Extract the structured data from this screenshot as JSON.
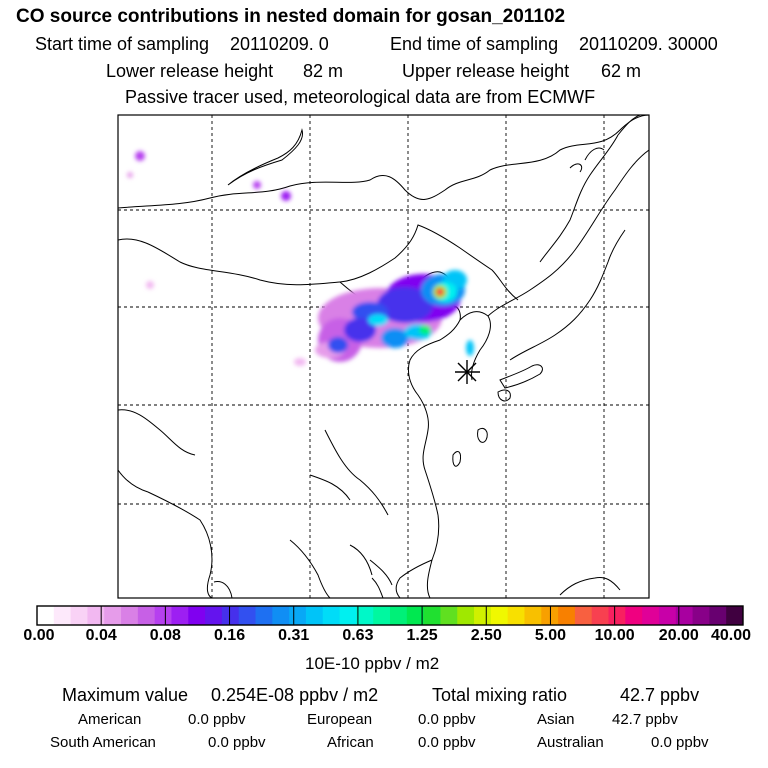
{
  "header": {
    "title": "CO  source contributions in nested domain for gosan_201102",
    "start_label": "Start time of sampling",
    "start_value": "20110209.     0",
    "end_label": "End time of sampling",
    "end_value": "20110209. 30000",
    "lower_label": "Lower release height",
    "lower_value": "82 m",
    "upper_label": "Upper release height",
    "upper_value": "62 m",
    "subtitle": "Passive tracer used, meteorological data are from ECMWF"
  },
  "map": {
    "receptor_icon": "asterisk-icon",
    "grid": true
  },
  "colorbar": {
    "tick_labels": [
      "0.00",
      "0.04",
      "0.08",
      "0.16",
      "0.31",
      "0.63",
      "1.25",
      "2.50",
      "5.00",
      "10.00",
      "20.00",
      "40.00"
    ],
    "unit": "10E-10 ppbv / m2",
    "colors": [
      "#ffffff",
      "#fde9fb",
      "#f9d2f6",
      "#f2b8f1",
      "#e69cea",
      "#d980e6",
      "#c760e6",
      "#b640ef",
      "#9d1ff2",
      "#8000f0",
      "#6414ee",
      "#4630ec",
      "#3250f0",
      "#1e70f2",
      "#108ef4",
      "#08a8f6",
      "#00c4f8",
      "#00dcf8",
      "#00f0f0",
      "#00f8c8",
      "#00f8a0",
      "#00f078",
      "#00e850",
      "#20e030",
      "#60e020",
      "#a0e800",
      "#d0f000",
      "#f0f800",
      "#f8e000",
      "#f8c000",
      "#f8a000",
      "#f88000",
      "#f86040",
      "#f84050",
      "#f82060",
      "#f00080",
      "#e00098",
      "#c800a8",
      "#a800a0",
      "#880088",
      "#680070",
      "#400040"
    ]
  },
  "stats": {
    "max_label": "Maximum value",
    "max_value": "0.254E-08 ppbv / m2",
    "total_label": "Total mixing ratio",
    "total_value": "42.7 ppbv",
    "regions": [
      {
        "name": "American",
        "value": "0.0 ppbv"
      },
      {
        "name": "European",
        "value": "0.0 ppbv"
      },
      {
        "name": "Asian",
        "value": "42.7 ppbv"
      },
      {
        "name": "South American",
        "value": "0.0 ppbv"
      },
      {
        "name": "African",
        "value": "0.0 ppbv"
      },
      {
        "name": "Australian",
        "value": "0.0 ppbv"
      }
    ]
  }
}
